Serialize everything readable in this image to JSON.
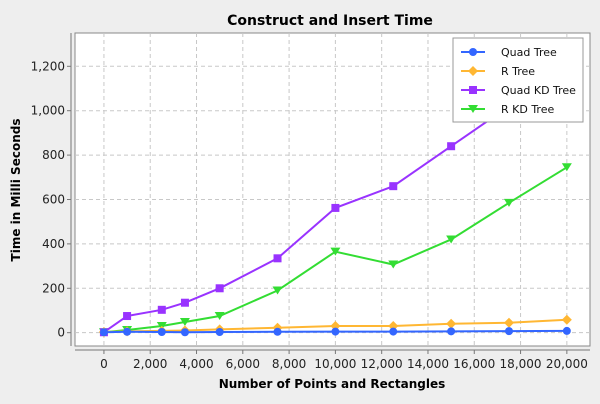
{
  "chart_data": {
    "type": "line",
    "title": "Construct and Insert Time",
    "xlabel": "Number of Points and Rectangles",
    "ylabel": "Time in Milli Seconds",
    "xlim": [
      -1250,
      21000
    ],
    "ylim": [
      -60,
      1350
    ],
    "xticks": [
      0,
      2000,
      4000,
      6000,
      8000,
      10000,
      12000,
      14000,
      16000,
      18000,
      20000
    ],
    "xtick_labels": [
      "0",
      "2,000",
      "4,000",
      "6,000",
      "8,000",
      "10,000",
      "12,000",
      "14,000",
      "16,000",
      "18,000",
      "20,000"
    ],
    "yticks": [
      0,
      200,
      400,
      600,
      800,
      1000,
      1200
    ],
    "ytick_labels": [
      "0",
      "200",
      "400",
      "600",
      "800",
      "1,000",
      "1,200"
    ],
    "grid": true,
    "legend_position": "top-right",
    "series": [
      {
        "name": "Quad Tree",
        "color": "#3366ff",
        "marker": "circle",
        "x": [
          0,
          1000,
          2500,
          3500,
          5000,
          7500,
          10000,
          12500,
          15000,
          17500,
          20000
        ],
        "y": [
          2,
          4,
          3,
          2,
          3,
          4,
          5,
          5,
          6,
          7,
          8
        ]
      },
      {
        "name": "R Tree",
        "color": "#ffb733",
        "marker": "diamond",
        "x": [
          0,
          1000,
          2500,
          3500,
          5000,
          7500,
          10000,
          12500,
          15000,
          17500,
          20000
        ],
        "y": [
          3,
          6,
          8,
          10,
          15,
          22,
          30,
          30,
          40,
          45,
          58
        ]
      },
      {
        "name": "Quad KD Tree",
        "color": "#9933ff",
        "marker": "square",
        "x": [
          0,
          1000,
          2500,
          3500,
          5000,
          7500,
          10000,
          12500,
          15000,
          17500
        ],
        "y": [
          2,
          75,
          103,
          135,
          200,
          335,
          562,
          660,
          840,
          1020
        ]
      },
      {
        "name": "R KD Tree",
        "color": "#33dd33",
        "marker": "triangle-down",
        "x": [
          0,
          1000,
          2500,
          3500,
          5000,
          7500,
          10000,
          12500,
          15000,
          17500,
          20000
        ],
        "y": [
          2,
          12,
          30,
          48,
          75,
          190,
          365,
          307,
          420,
          585,
          745
        ]
      }
    ]
  }
}
